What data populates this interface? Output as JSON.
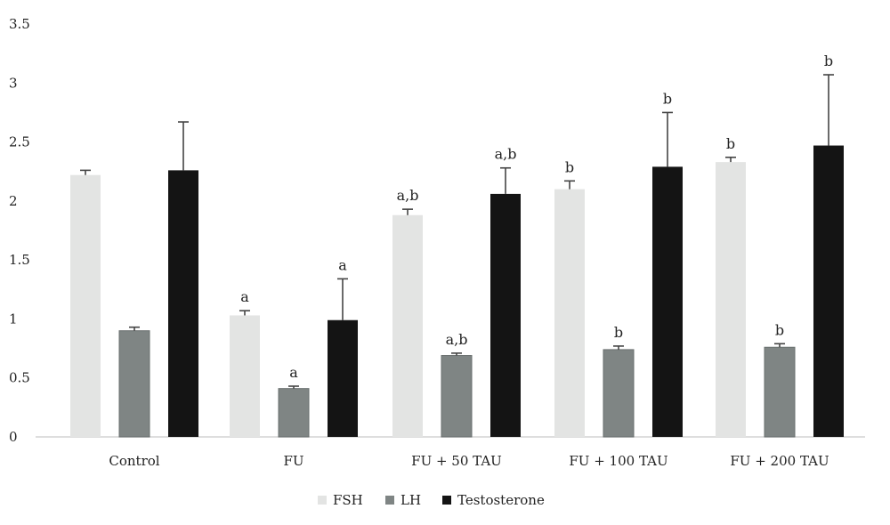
{
  "chart_data": {
    "type": "bar",
    "categories": [
      "Control",
      "FU",
      "FU + 50 TAU",
      "FU + 100 TAU",
      "FU + 200 TAU"
    ],
    "ylim": [
      0,
      3.5
    ],
    "yticks": [
      "0",
      "0.5",
      "1",
      "1.5",
      "2",
      "2.5",
      "3",
      "3.5"
    ],
    "grid": false,
    "legend_position": "bottom",
    "series": [
      {
        "name": "FSH",
        "color": "#e3e4e3",
        "values": [
          2.22,
          1.03,
          1.88,
          2.1,
          2.33
        ],
        "errors": [
          0.04,
          0.04,
          0.05,
          0.07,
          0.04
        ],
        "labels": [
          "",
          "a",
          "a,b",
          "b",
          "b"
        ]
      },
      {
        "name": "LH",
        "color": "#7f8584",
        "values": [
          0.9,
          0.41,
          0.69,
          0.74,
          0.76
        ],
        "errors": [
          0.03,
          0.02,
          0.02,
          0.03,
          0.03
        ],
        "labels": [
          "",
          "a",
          "a,b",
          "b",
          "b"
        ]
      },
      {
        "name": "Testosterone",
        "color": "#141414",
        "values": [
          2.26,
          0.99,
          2.06,
          2.29,
          2.47
        ],
        "errors": [
          0.41,
          0.35,
          0.22,
          0.46,
          0.6
        ],
        "labels": [
          "",
          "a",
          "a,b",
          "b",
          "b"
        ]
      }
    ]
  }
}
